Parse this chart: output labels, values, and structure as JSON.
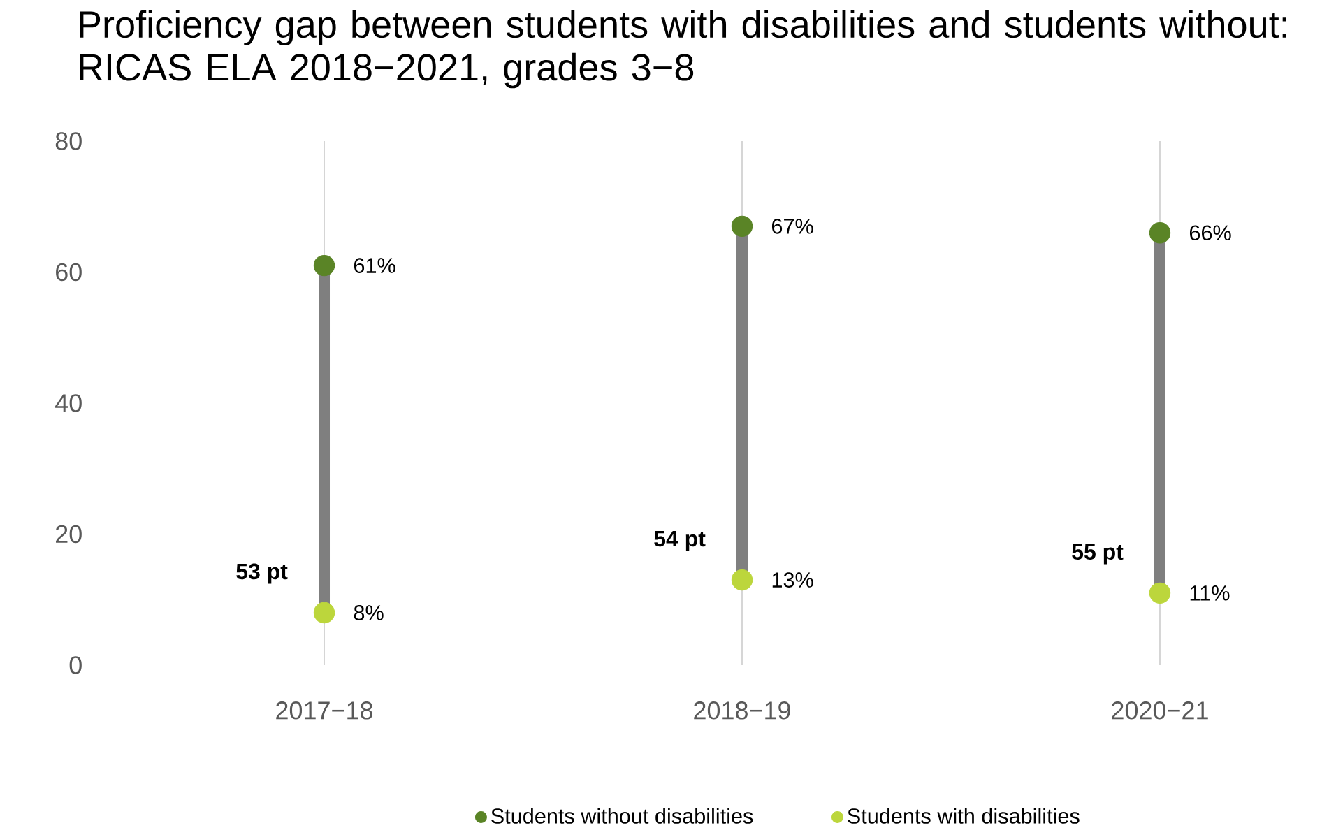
{
  "chart_data": {
    "type": "scatter",
    "title": "Proficiency gap between students with disabilities and students without: RICAS ELA 2018−2021, grades 3−8",
    "categories": [
      "2017−18",
      "2018−19",
      "2020−21"
    ],
    "series": [
      {
        "name": "Students without disabilities",
        "color": "#5a8426",
        "values": [
          61,
          67,
          66
        ],
        "value_labels": [
          "61%",
          "67%",
          "66%"
        ]
      },
      {
        "name": "Students with disabilities",
        "color": "#bcd63c",
        "values": [
          8,
          13,
          11
        ],
        "value_labels": [
          "8%",
          "13%",
          "11%"
        ]
      }
    ],
    "annotations": [
      "53 pt",
      "54 pt",
      "55 pt"
    ],
    "ylim": [
      0,
      80
    ],
    "yticks": [
      0,
      20,
      40,
      60,
      80
    ],
    "grid": "x",
    "legend": "bottom",
    "marker": "circle"
  }
}
